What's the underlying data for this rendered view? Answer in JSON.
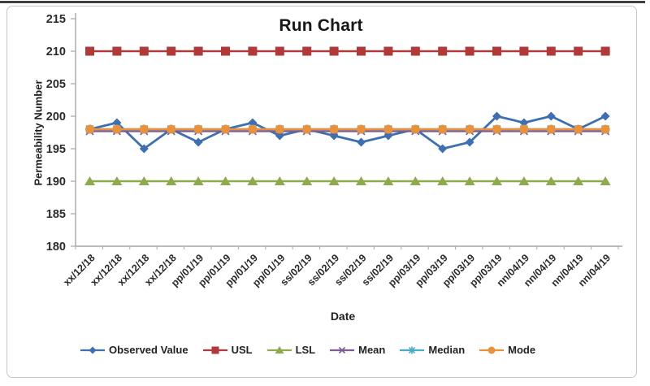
{
  "chart_data": {
    "type": "line",
    "title": "Run Chart",
    "xlabel": "Date",
    "ylabel": "Permeability Number",
    "ylim": [
      180,
      215
    ],
    "ytick_step": 5,
    "grid": false,
    "legend_position": "bottom",
    "categories": [
      "xx/12/18",
      "xx/12/18",
      "xx/12/18",
      "xx/12/18",
      "pp/01/19",
      "pp/01/19",
      "pp/01/19",
      "pp/01/19",
      "ss/02/19",
      "ss/02/19",
      "ss/02/19",
      "ss/02/19",
      "pp/03/19",
      "pp/03/19",
      "pp/03/19",
      "pp/03/19",
      "nn/04/19",
      "nn/04/19",
      "nn/04/19",
      "nn/04/19"
    ],
    "series": [
      {
        "name": "Observed Value",
        "marker": "diamond",
        "color": "#3e6fae",
        "values": [
          198,
          199,
          195,
          198,
          196,
          198,
          199,
          197,
          198,
          197,
          196,
          197,
          198,
          195,
          196,
          200,
          199,
          200,
          198,
          200
        ]
      },
      {
        "name": "USL",
        "marker": "square",
        "color": "#b03a3a",
        "values": [
          210,
          210,
          210,
          210,
          210,
          210,
          210,
          210,
          210,
          210,
          210,
          210,
          210,
          210,
          210,
          210,
          210,
          210,
          210,
          210
        ]
      },
      {
        "name": "LSL",
        "marker": "triangle",
        "color": "#8faa4e",
        "values": [
          190,
          190,
          190,
          190,
          190,
          190,
          190,
          190,
          190,
          190,
          190,
          190,
          190,
          190,
          190,
          190,
          190,
          190,
          190,
          190
        ]
      },
      {
        "name": "Mean",
        "marker": "x",
        "color": "#7d5c92",
        "values": [
          197.7,
          197.7,
          197.7,
          197.7,
          197.7,
          197.7,
          197.7,
          197.7,
          197.7,
          197.7,
          197.7,
          197.7,
          197.7,
          197.7,
          197.7,
          197.7,
          197.7,
          197.7,
          197.7,
          197.7
        ]
      },
      {
        "name": "Median",
        "marker": "asterisk",
        "color": "#4bacc6",
        "values": [
          198,
          198,
          198,
          198,
          198,
          198,
          198,
          198,
          198,
          198,
          198,
          198,
          198,
          198,
          198,
          198,
          198,
          198,
          198,
          198
        ]
      },
      {
        "name": "Mode",
        "marker": "circle",
        "color": "#e8923e",
        "values": [
          198,
          198,
          198,
          198,
          198,
          198,
          198,
          198,
          198,
          198,
          198,
          198,
          198,
          198,
          198,
          198,
          198,
          198,
          198,
          198
        ]
      }
    ],
    "axis_color": "#a6a6a6",
    "tick_label_color": "#2b2b2b"
  }
}
